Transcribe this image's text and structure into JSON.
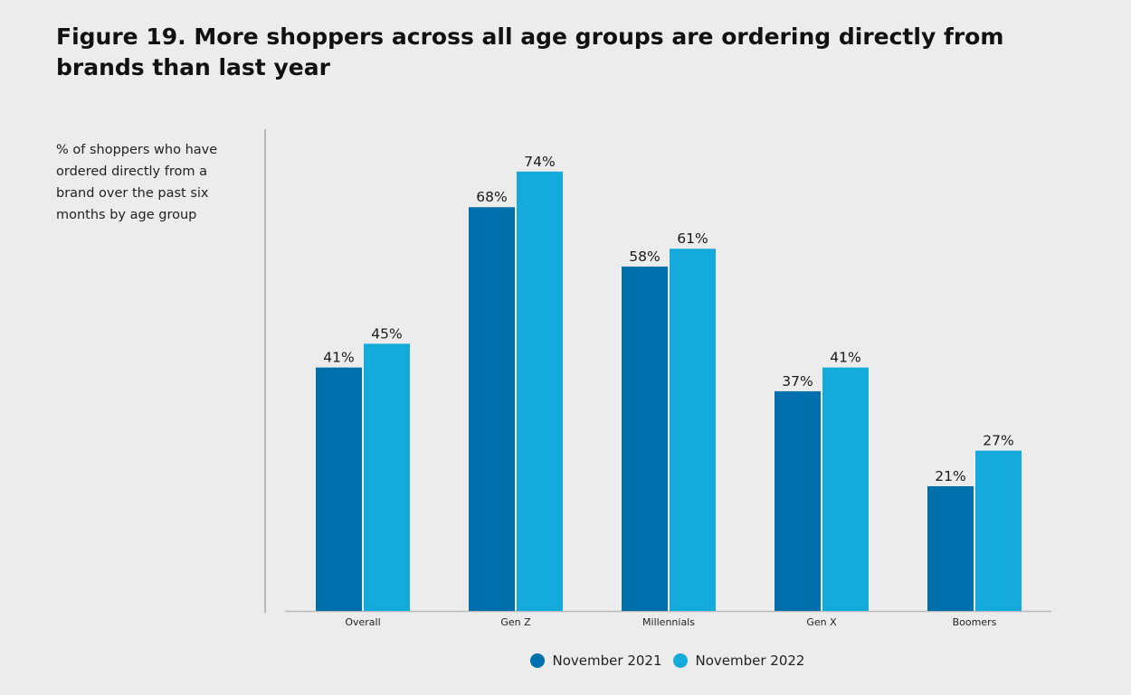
{
  "title": "Figure 19. More shoppers across all age groups are ordering directly from brands than last year",
  "side_note": "% of shoppers who have ordered directly from a brand over the past six months by age group",
  "colors": {
    "series_2021": "#0070ad",
    "series_2022": "#14abdc",
    "axis": "#b9b9b9",
    "background": "#ececec"
  },
  "chart_data": {
    "type": "bar",
    "categories": [
      "Overall",
      "Gen Z",
      "Millennials",
      "Gen X",
      "Boomers"
    ],
    "series": [
      {
        "name": "November 2021",
        "values": [
          41,
          68,
          58,
          37,
          21
        ],
        "labels": [
          "41%",
          "68%",
          "58%",
          "37%",
          "21%"
        ]
      },
      {
        "name": "November 2022",
        "values": [
          45,
          74,
          61,
          41,
          27
        ],
        "labels": [
          "45%",
          "74%",
          "61%",
          "41%",
          "27%"
        ]
      }
    ],
    "title": "Figure 19. More shoppers across all age groups are ordering directly from brands than last year",
    "xlabel": "",
    "ylabel": "% of shoppers who have ordered directly from a brand over the past six months by age group",
    "ylim": [
      0,
      100
    ],
    "grid": false,
    "legend_position": "bottom-center"
  }
}
